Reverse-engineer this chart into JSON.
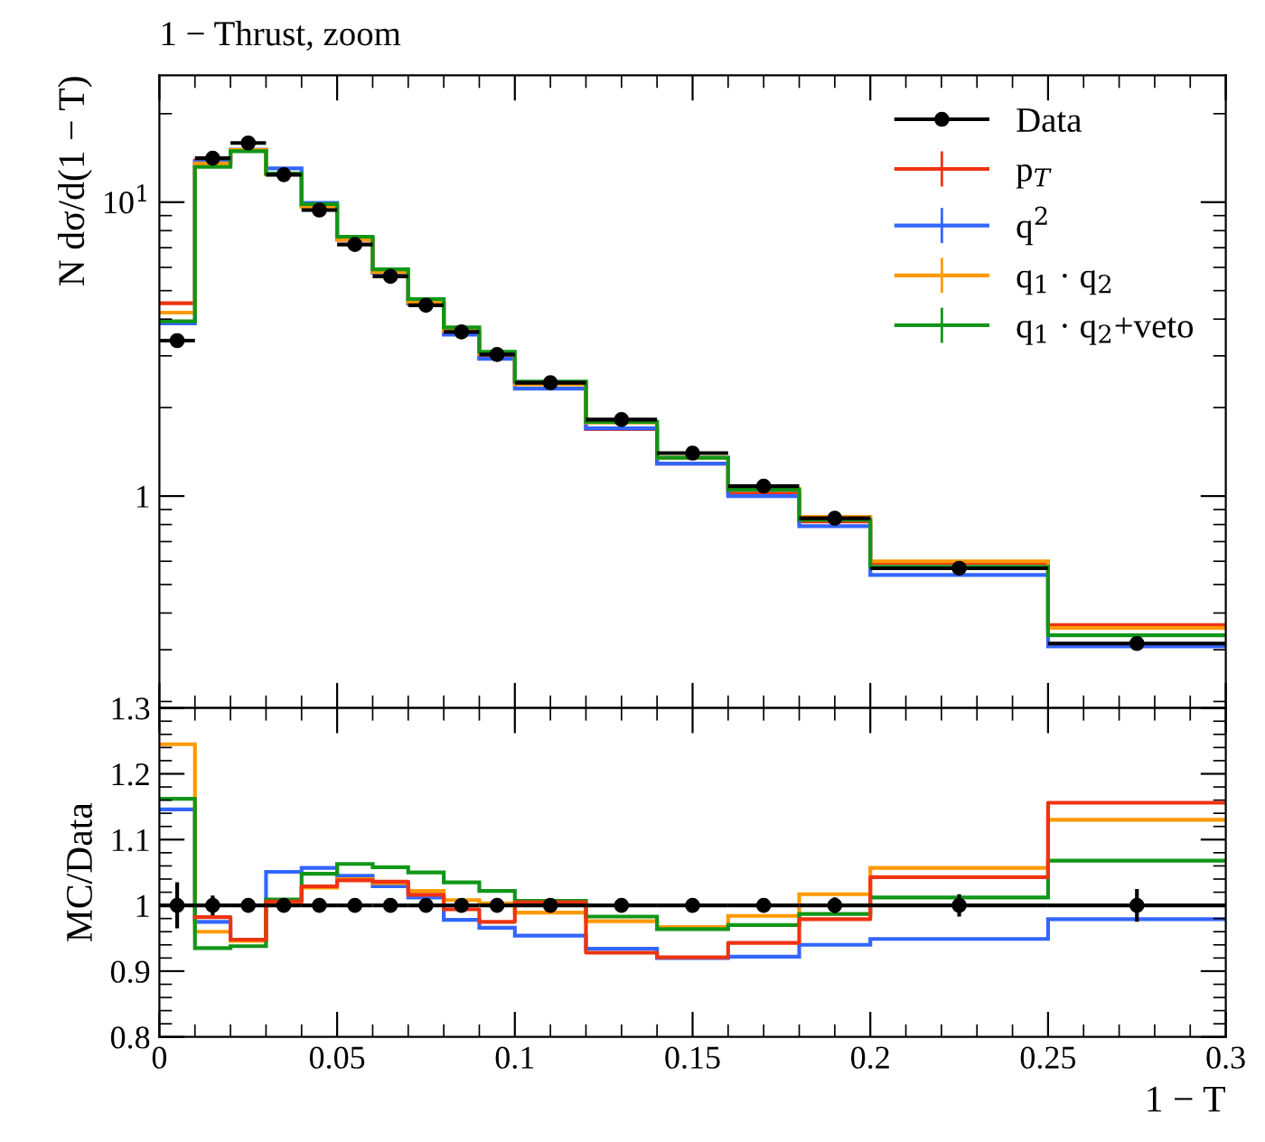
{
  "chart_data": [
    {
      "type": "histogram",
      "title": "1 − Thrust, zoom",
      "ylabel": "N dσ/d(1 − T)",
      "log": true,
      "legend": "top right",
      "tick_labels": "y",
      "bins": [
        0,
        0.01,
        0.02,
        0.03,
        0.04,
        0.05,
        0.06,
        0.07,
        0.08,
        0.09,
        0.1,
        0.12,
        0.14,
        0.16,
        0.18,
        0.2,
        0.25,
        0.3
      ],
      "xlim": [
        0,
        0.3
      ],
      "xticks": [
        0,
        0.05,
        0.1,
        0.15,
        0.2,
        0.25,
        0.3
      ],
      "ylim": [
        0.19,
        27
      ],
      "yticks": [
        {
          "value": 1,
          "label": "1"
        },
        {
          "value": 10,
          "label": "10$^{1}$"
        }
      ],
      "series": [
        {
          "name": "Data",
          "type": "scatter",
          "marker": "circle",
          "color": "#000000",
          "x": [
            0.005,
            0.015,
            0.025,
            0.035,
            0.045,
            0.055,
            0.065,
            0.075,
            0.085,
            0.095,
            0.11,
            0.13,
            0.15,
            0.17,
            0.19,
            0.225,
            0.275
          ],
          "values": [
            3.38,
            14.1,
            15.9,
            12.4,
            9.4,
            7.18,
            5.59,
            4.46,
            3.62,
            3.03,
            2.43,
            1.82,
            1.4,
            1.08,
            0.84,
            0.568,
            0.315
          ],
          "xerrors": [
            0.005,
            0.005,
            0.005,
            0.005,
            0.005,
            0.005,
            0.005,
            0.005,
            0.005,
            0.005,
            0.01,
            0.01,
            0.01,
            0.01,
            0.01,
            0.025,
            0.025
          ]
        },
        {
          "name": "p$_{T}$",
          "color": "#ee3311",
          "values": [
            4.53,
            13.85,
            15.07,
            12.47,
            9.67,
            7.45,
            5.79,
            4.53,
            3.6,
            2.95,
            2.44,
            1.69,
            1.29,
            1.02,
            0.82,
            0.592,
            0.364
          ]
        },
        {
          "name": "q$^{2}$",
          "color": "#3366ff",
          "values": [
            3.87,
            13.75,
            15.07,
            13.03,
            9.94,
            7.5,
            5.75,
            4.51,
            3.54,
            2.93,
            2.32,
            1.7,
            1.29,
            1.0,
            0.79,
            0.539,
            0.308
          ]
        },
        {
          "name": "q$_{1}$ · q$_{2}$",
          "color": "#ff9900",
          "values": [
            4.21,
            13.54,
            15.04,
            12.42,
            9.65,
            7.47,
            5.78,
            4.56,
            3.65,
            3.04,
            2.4,
            1.78,
            1.35,
            1.06,
            0.85,
            0.6,
            0.356
          ]
        },
        {
          "name": "q$_{1}$ · q$_{2}$+veto",
          "color": "#109618",
          "values": [
            3.93,
            13.18,
            14.91,
            12.51,
            9.85,
            7.63,
            5.91,
            4.68,
            3.75,
            3.1,
            2.45,
            1.79,
            1.35,
            1.05,
            0.83,
            0.575,
            0.336
          ]
        }
      ]
    },
    {
      "type": "histogram",
      "ylabel": "MC/Data",
      "xlabel": "1 − T",
      "bins": [
        0,
        0.01,
        0.02,
        0.03,
        0.04,
        0.05,
        0.06,
        0.07,
        0.08,
        0.09,
        0.1,
        0.12,
        0.14,
        0.16,
        0.18,
        0.2,
        0.25,
        0.3
      ],
      "xlim": [
        0,
        0.3
      ],
      "xticks": [
        0,
        0.05,
        0.1,
        0.15,
        0.2,
        0.25,
        0.3
      ],
      "ylim": [
        0.8,
        1.3
      ],
      "yticks": [
        0.8,
        0.9,
        1,
        1.1,
        1.2,
        1.3
      ],
      "series": [
        {
          "type": "scatter",
          "marker": "circle",
          "color": "#000000",
          "x": [
            0.005,
            0.015,
            0.025,
            0.035,
            0.045,
            0.055,
            0.065,
            0.075,
            0.085,
            0.095,
            0.11,
            0.13,
            0.15,
            0.17,
            0.19,
            0.225,
            0.275
          ],
          "values": [
            1,
            1,
            1,
            1,
            1,
            1,
            1,
            1,
            1,
            1,
            1,
            1,
            1,
            1,
            1,
            1,
            1
          ],
          "errors": [
            0.035,
            0.015,
            0.005,
            0.005,
            0.005,
            0.005,
            0.005,
            0.005,
            0.01,
            0.01,
            0.005,
            0.005,
            0.005,
            0.01,
            0.012,
            0.017,
            0.025
          ],
          "xerrors": [
            0.005,
            0.005,
            0.005,
            0.005,
            0.005,
            0.005,
            0.005,
            0.005,
            0.005,
            0.005,
            0.01,
            0.01,
            0.01,
            0.01,
            0.01,
            0.025,
            0.025
          ]
        },
        {
          "color": "#ee3311",
          "type": "step",
          "x": [
            0.01,
            0.02,
            0.03,
            0.04,
            0.05,
            0.06,
            0.07,
            0.08,
            0.09,
            0.1,
            0.12,
            0.14,
            0.16,
            0.18,
            0.2,
            0.25,
            0.3
          ],
          "values": [
            0.982,
            0.948,
            1.006,
            1.029,
            1.038,
            1.036,
            1.016,
            0.994,
            0.975,
            1.005,
            0.928,
            0.921,
            0.943,
            0.979,
            1.043,
            1.156,
            1.156
          ]
        },
        {
          "color": "#3366ff",
          "values": [
            1.146,
            0.975,
            0.948,
            1.051,
            1.057,
            1.045,
            1.029,
            1.012,
            0.978,
            0.966,
            0.954,
            0.934,
            0.92,
            0.922,
            0.94,
            0.949,
            0.979
          ]
        },
        {
          "color": "#ff9900",
          "values": [
            1.245,
            0.96,
            0.946,
            1.002,
            1.027,
            1.04,
            1.034,
            1.022,
            1.008,
            1.003,
            0.989,
            0.976,
            0.967,
            0.984,
            1.017,
            1.057,
            1.13
          ]
        },
        {
          "color": "#109618",
          "values": [
            1.162,
            0.935,
            0.938,
            1.009,
            1.048,
            1.063,
            1.058,
            1.05,
            1.035,
            1.022,
            1.007,
            0.983,
            0.964,
            0.97,
            0.987,
            1.012,
            1.068
          ]
        }
      ]
    }
  ]
}
